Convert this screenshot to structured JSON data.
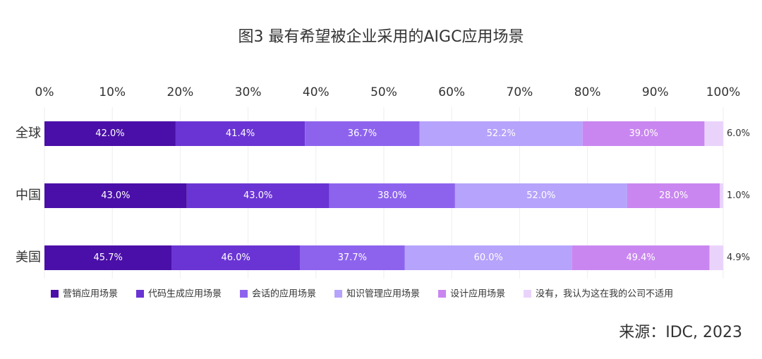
{
  "chart_data": {
    "type": "bar",
    "orientation": "horizontal",
    "stacking": "percent",
    "title": "图3 最有希望被企业采用的AIGC应用场景",
    "source": "来源：IDC, 2023",
    "categories": [
      "全球",
      "中国",
      "美国"
    ],
    "series": [
      {
        "name": "营销应用场景",
        "color": "#4a0fa8",
        "values": [
          42.0,
          43.0,
          45.7
        ],
        "value_labels": [
          "42.0%",
          "43.0%",
          "45.7%"
        ]
      },
      {
        "name": "代码生成应用场景",
        "color": "#6a34d4",
        "values": [
          41.4,
          43.0,
          46.0
        ],
        "value_labels": [
          "41.4%",
          "43.0%",
          "46.0%"
        ]
      },
      {
        "name": "会话的应用场景",
        "color": "#8d63ee",
        "values": [
          36.7,
          38.0,
          37.7
        ],
        "value_labels": [
          "36.7%",
          "38.0%",
          "37.7%"
        ]
      },
      {
        "name": "知识管理应用场景",
        "color": "#b6a3fb",
        "values": [
          52.2,
          52.0,
          60.0
        ],
        "value_labels": [
          "52.2%",
          "52.0%",
          "60.0%"
        ]
      },
      {
        "name": "设计应用场景",
        "color": "#c986f0",
        "values": [
          39.0,
          28.0,
          49.4
        ],
        "value_labels": [
          "39.0%",
          "28.0%",
          "49.4%"
        ]
      },
      {
        "name": "没有，我认为这在我的公司不适用",
        "color": "#ead3fb",
        "values": [
          6.0,
          1.0,
          4.9
        ],
        "value_labels": [
          "6.0%",
          "1.0%",
          "4.9%"
        ]
      }
    ],
    "xlim": [
      0,
      100
    ],
    "xticks": [
      {
        "value": 0,
        "label": "0%"
      },
      {
        "value": 10,
        "label": "10%"
      },
      {
        "value": 20,
        "label": "20%"
      },
      {
        "value": 30,
        "label": "30%"
      },
      {
        "value": 40,
        "label": "40%"
      },
      {
        "value": 50,
        "label": "50%"
      },
      {
        "value": 60,
        "label": "60%"
      },
      {
        "value": 70,
        "label": "70%"
      },
      {
        "value": 80,
        "label": "80%"
      },
      {
        "value": 90,
        "label": "90%"
      },
      {
        "value": 100,
        "label": "100%"
      }
    ],
    "grid": true,
    "legend": "bottom"
  }
}
